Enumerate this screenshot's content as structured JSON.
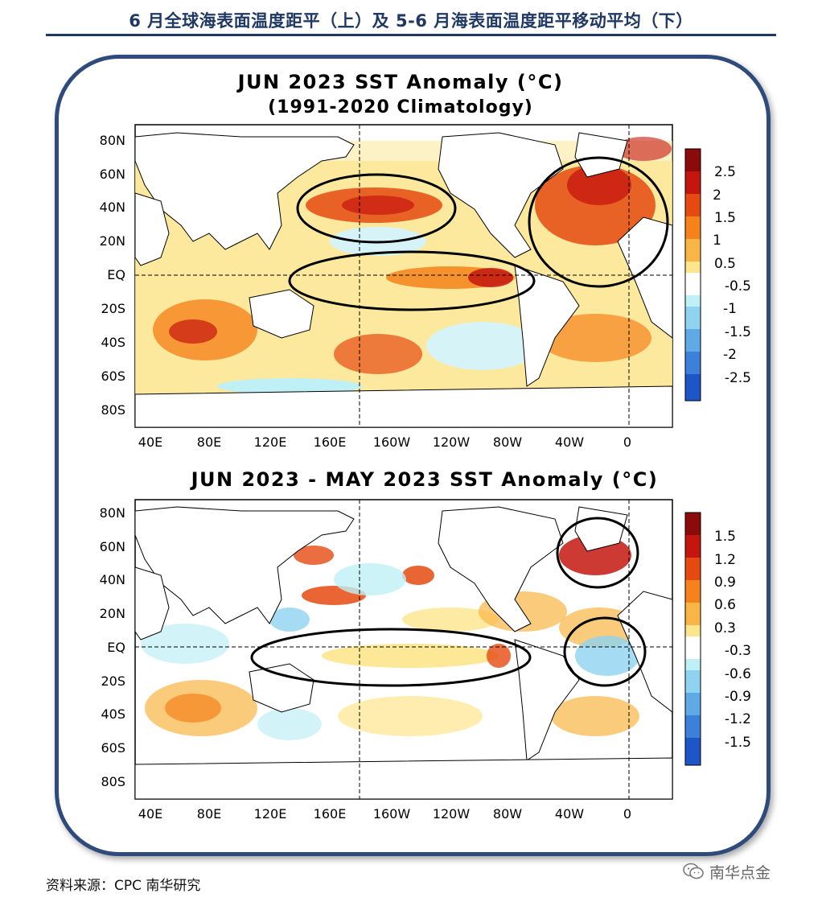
{
  "page_title": "6 月全球海表面温度距平（上）及 5-6 月海表面温度距平移动平均（下）",
  "source": "资料来源：CPC 南华研究",
  "watermark": "南华点金",
  "watermark_icon": "wechat-icon",
  "maps": [
    {
      "title_line1": "JUN 2023 SST Anomaly (°C)",
      "title_line2": "(1991-2020 Climatology)",
      "lat_labels": [
        "80N",
        "60N",
        "40N",
        "20N",
        "EQ",
        "20S",
        "40S",
        "60S",
        "80S"
      ],
      "lon_labels": [
        "40E",
        "80E",
        "120E",
        "160E",
        "160W",
        "120W",
        "80W",
        "40W",
        "0"
      ],
      "colorbar_labels": [
        "2.5",
        "2",
        "1.5",
        "1",
        "0.5",
        "-0.5",
        "-1",
        "-1.5",
        "-2",
        "-2.5"
      ],
      "colorbar_colors": [
        "#8b0a0a",
        "#c4160f",
        "#e54a10",
        "#f5821b",
        "#f9b545",
        "#fde58c",
        "#ffffff",
        "#bff0f5",
        "#8fd3f0",
        "#5ea9e6",
        "#3d80d9",
        "#1f56c7"
      ],
      "highlight_regions": [
        "North Pacific",
        "Equatorial Pacific",
        "North Atlantic"
      ]
    },
    {
      "title_line1": "JUN 2023 - MAY 2023 SST Anomaly (°C)",
      "title_line2": "",
      "lat_labels": [
        "80N",
        "60N",
        "40N",
        "20N",
        "EQ",
        "20S",
        "40S",
        "60S",
        "80S"
      ],
      "lon_labels": [
        "40E",
        "80E",
        "120E",
        "160E",
        "160W",
        "120W",
        "80W",
        "40W",
        "0"
      ],
      "colorbar_labels": [
        "1.5",
        "1.2",
        "0.9",
        "0.6",
        "0.3",
        "-0.3",
        "-0.6",
        "-0.9",
        "-1.2",
        "-1.5"
      ],
      "colorbar_colors": [
        "#8b0a0a",
        "#c4160f",
        "#e54a10",
        "#f5821b",
        "#f9b545",
        "#fde58c",
        "#ffffff",
        "#bff0f5",
        "#8fd3f0",
        "#5ea9e6",
        "#3d80d9",
        "#1f56c7"
      ],
      "highlight_regions": [
        "North Atlantic",
        "Equatorial Pacific",
        "Tropical Atlantic"
      ]
    }
  ]
}
